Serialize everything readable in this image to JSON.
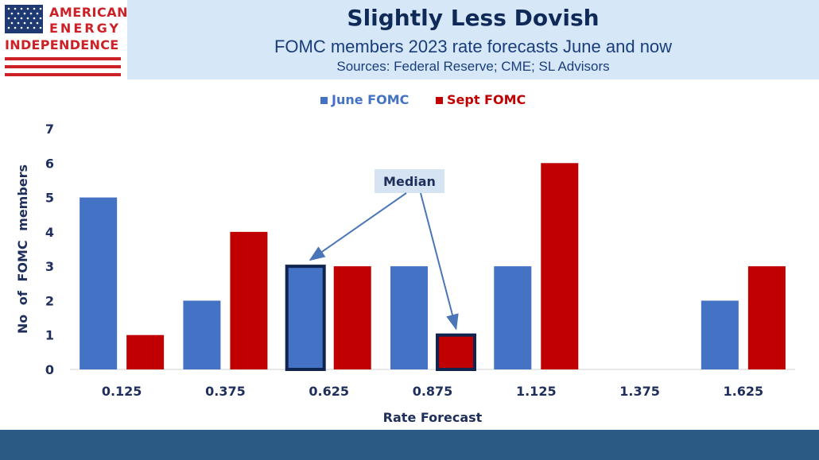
{
  "header": {
    "logo": {
      "line1": "AMERICAN",
      "line2": "ENERGY",
      "line3": "INDEPENDENCE"
    },
    "title": "Slightly Less Dovish",
    "subtitle": "FOMC members 2023 rate forecasts June and now",
    "sources": "Sources: Federal Reserve; CME; SL Advisors"
  },
  "colors": {
    "june": "#4472c4",
    "sept": "#c00000",
    "axis_text": "#1f2f5c",
    "highlight_border": "#0f2550",
    "annotation_bg": "#d6e3f3",
    "arrow": "#4a76b8"
  },
  "chart_data": {
    "type": "bar",
    "title": "Slightly Less Dovish",
    "subtitle": "FOMC members 2023 rate forecasts June and now",
    "xlabel": "Rate Forecast",
    "ylabel": "No of FOMC members",
    "ylim": [
      0,
      7
    ],
    "yticks": [
      "0",
      "1",
      "2",
      "3",
      "4",
      "5",
      "6",
      "7"
    ],
    "categories": [
      "0.125",
      "0.375",
      "0.625",
      "0.875",
      "1.125",
      "1.375",
      "1.625"
    ],
    "series": [
      {
        "name": "June FOMC",
        "values": [
          5,
          2,
          3,
          3,
          3,
          0,
          2
        ]
      },
      {
        "name": "Sept FOMC",
        "values": [
          1,
          4,
          3,
          1,
          6,
          0,
          3
        ]
      }
    ],
    "legend_position": "top-center",
    "grid": false,
    "annotations": [
      {
        "text": "Median",
        "targets": [
          {
            "series": "June FOMC",
            "category": "0.625"
          },
          {
            "series": "Sept FOMC",
            "category": "0.875"
          }
        ]
      }
    ]
  }
}
